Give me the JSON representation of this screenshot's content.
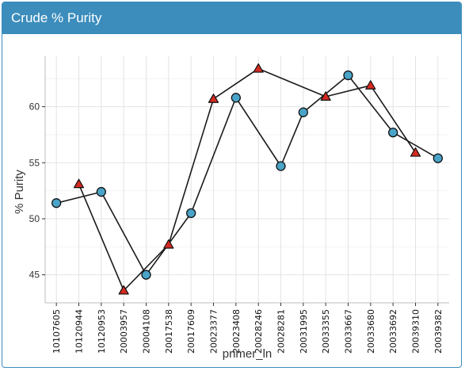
{
  "panel": {
    "title": "Crude % Purity"
  },
  "chart_data": {
    "type": "line",
    "title": "",
    "xlabel": "primer_ln",
    "ylabel": "% Purity",
    "categories": [
      "10107605",
      "10120944",
      "10120953",
      "20003957",
      "20004108",
      "20017538",
      "20017609",
      "20023377",
      "20023408",
      "20028246",
      "20028281",
      "20031995",
      "20033355",
      "20033667",
      "20033680",
      "20033692",
      "20039310",
      "20039382"
    ],
    "ylim": [
      42.5,
      64.5
    ],
    "yticks": [
      45,
      50,
      55,
      60
    ],
    "grid": true,
    "legend": "none",
    "series": [
      {
        "marker": "circle",
        "color": "#4aa3c8",
        "points": [
          {
            "x": "10107605",
            "y": 51.4
          },
          {
            "x": "10120953",
            "y": 52.4
          },
          {
            "x": "20004108",
            "y": 45.0
          },
          {
            "x": "20017609",
            "y": 50.5
          },
          {
            "x": "20023408",
            "y": 60.8
          },
          {
            "x": "20028281",
            "y": 54.7
          },
          {
            "x": "20031995",
            "y": 59.5
          },
          {
            "x": "20033667",
            "y": 62.8
          },
          {
            "x": "20033692",
            "y": 57.7
          },
          {
            "x": "20039382",
            "y": 55.4
          }
        ]
      },
      {
        "marker": "triangle",
        "color": "#d42a22",
        "points": [
          {
            "x": "10120944",
            "y": 53.1
          },
          {
            "x": "20003957",
            "y": 43.6
          },
          {
            "x": "20017538",
            "y": 47.7
          },
          {
            "x": "20023377",
            "y": 60.7
          },
          {
            "x": "20028246",
            "y": 63.4
          },
          {
            "x": "20033355",
            "y": 60.9
          },
          {
            "x": "20033680",
            "y": 61.9
          },
          {
            "x": "20039310",
            "y": 55.9
          }
        ]
      }
    ]
  }
}
